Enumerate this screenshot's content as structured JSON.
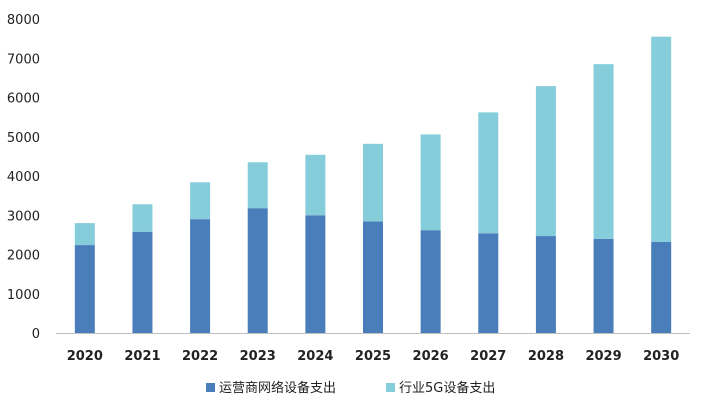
{
  "chart_data": {
    "type": "bar",
    "stacked": true,
    "categories": [
      "2020",
      "2021",
      "2022",
      "2023",
      "2024",
      "2025",
      "2026",
      "2027",
      "2028",
      "2029",
      "2030"
    ],
    "series": [
      {
        "name": "运营商网络设备支出",
        "color": "#4a7ebb",
        "values": [
          2240,
          2580,
          2900,
          3180,
          3000,
          2840,
          2620,
          2540,
          2470,
          2400,
          2320
        ]
      },
      {
        "name": "行业5G设备支出",
        "color": "#86cddb",
        "values": [
          560,
          700,
          940,
          1170,
          1540,
          1980,
          2440,
          3080,
          3820,
          4450,
          5230
        ]
      }
    ],
    "yticks": [
      "0",
      "1000",
      "2000",
      "3000",
      "4000",
      "5000",
      "6000",
      "7000",
      "8000"
    ],
    "ylim": [
      0,
      8000
    ],
    "grid": false,
    "legend_position": "bottom"
  }
}
